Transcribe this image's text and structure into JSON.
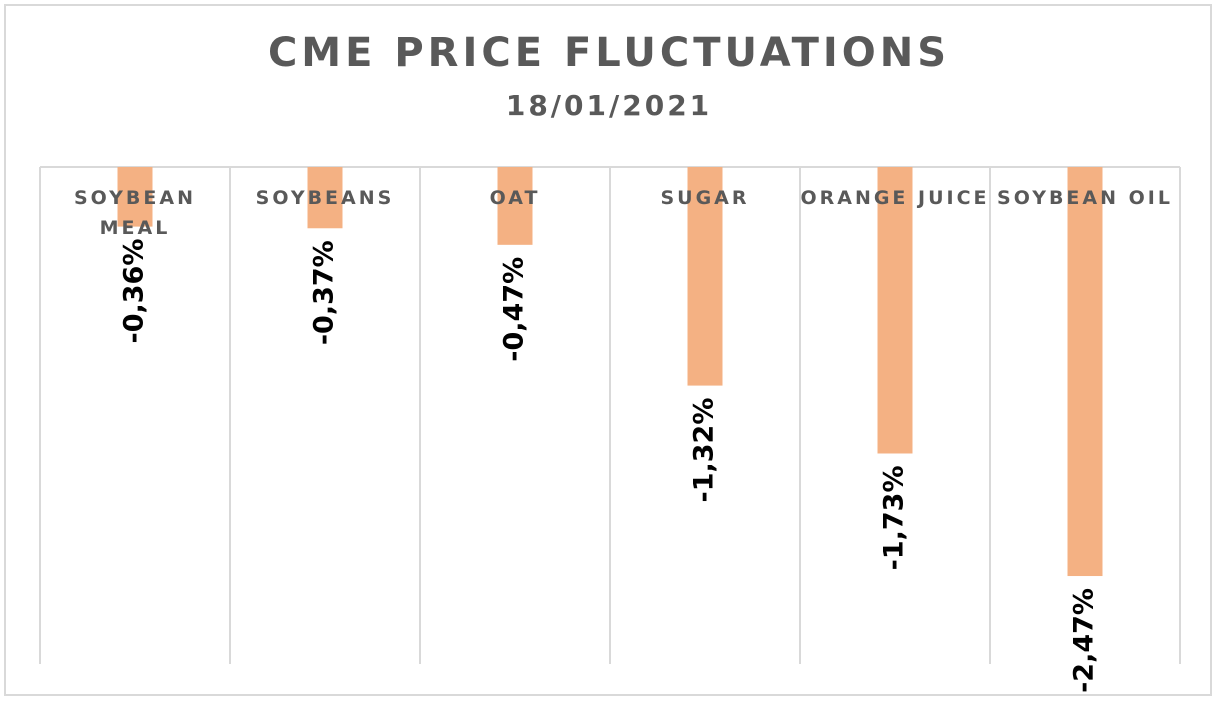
{
  "chart_data": {
    "type": "bar",
    "title": "CME PRICE FLUCTUATIONS",
    "subtitle": "18/01/2021",
    "categories": [
      [
        "SOYBEAN",
        "MEAL"
      ],
      [
        "SOYBEANS"
      ],
      [
        "OAT"
      ],
      [
        "SUGAR"
      ],
      [
        "ORANGE JUICE"
      ],
      [
        "SOYBEAN OIL"
      ]
    ],
    "values": [
      -0.36,
      -0.37,
      -0.47,
      -1.32,
      -1.73,
      -2.47
    ],
    "data_labels": [
      "-0,36%",
      "-0,37%",
      "-0,47%",
      "-1,32%",
      "-1,73%",
      "-2,47%"
    ],
    "xlabel": "",
    "ylabel": "",
    "bar_color": "#f4b183",
    "axis_color": "#d9d9d9",
    "text_color": "#595959",
    "label_color": "#000000",
    "grid": "vertical category dividers"
  }
}
